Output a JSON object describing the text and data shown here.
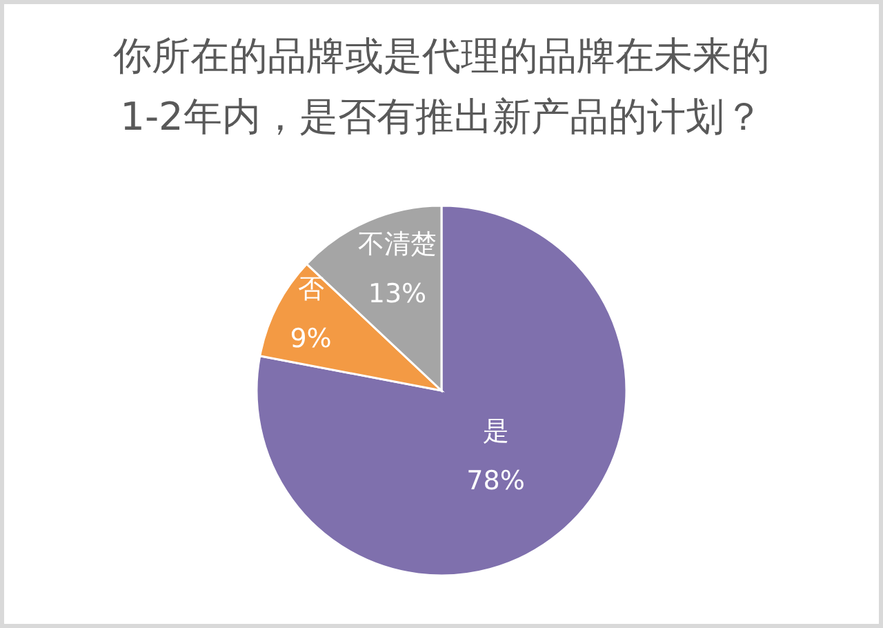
{
  "chart_data": {
    "type": "pie",
    "title": "你所在的品牌或是代理的品牌在未来的\n1-2年内，是否有推出新产品的计划？",
    "categories": [
      "是",
      "否",
      "不清楚"
    ],
    "values": [
      78,
      9,
      13
    ],
    "colors": [
      "#7f70ad",
      "#f39a44",
      "#a5a5a5"
    ],
    "value_labels": [
      "78%",
      "9%",
      "13%"
    ]
  }
}
